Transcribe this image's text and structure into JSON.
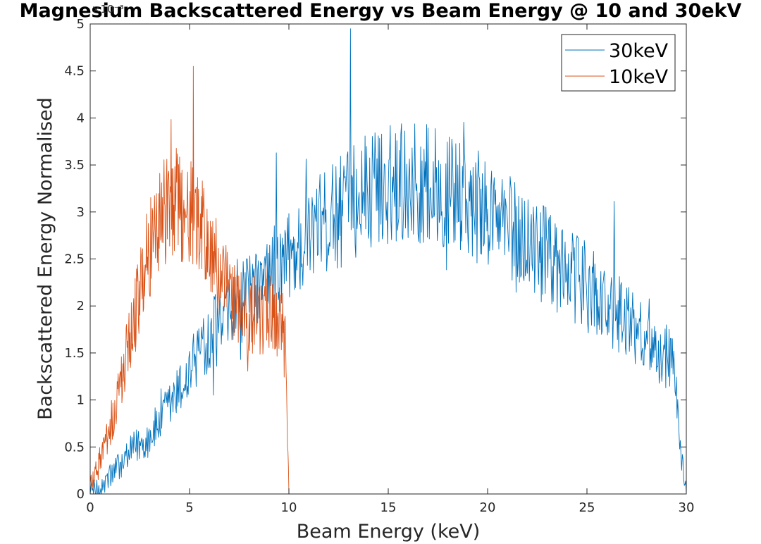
{
  "chart_data": {
    "type": "line",
    "title": "Magnesium Backscattered Energy vs Beam Energy @ 10 and 30ekV",
    "xlabel": "Beam Energy (keV)",
    "ylabel": "Backscattered Energy Normalised",
    "y_multiplier_label": "×10⁻³",
    "xlim": [
      0,
      30
    ],
    "ylim": [
      0,
      5
    ],
    "xticks": [
      0,
      5,
      10,
      15,
      20,
      25,
      30
    ],
    "xtick_labels": [
      "0",
      "5",
      "10",
      "15",
      "20",
      "25",
      "30"
    ],
    "yticks": [
      0,
      0.5,
      1,
      1.5,
      2,
      2.5,
      3,
      3.5,
      4,
      4.5,
      5
    ],
    "ytick_labels": [
      "0",
      "0.5",
      "1",
      "1.5",
      "2",
      "2.5",
      "3",
      "3.5",
      "4",
      "4.5",
      "5"
    ],
    "grid": false,
    "legend_position": "top-right",
    "series": [
      {
        "name": "30keV",
        "color": "#0072BD",
        "x_step": 0.3,
        "x_start": 0,
        "values": [
          0.05,
          0.02,
          0.08,
          0.15,
          0.25,
          0.3,
          0.38,
          0.45,
          0.52,
          0.55,
          0.62,
          0.7,
          0.8,
          0.9,
          1.0,
          1.1,
          1.2,
          1.35,
          1.5,
          1.6,
          1.7,
          1.75,
          1.8,
          1.85,
          1.9,
          2.0,
          2.05,
          2.1,
          2.15,
          2.2,
          2.3,
          2.35,
          2.4,
          2.5,
          2.55,
          2.6,
          2.7,
          2.75,
          2.8,
          2.85,
          2.9,
          2.95,
          3.0,
          3.05,
          3.1,
          3.15,
          3.2,
          3.2,
          3.25,
          3.25,
          3.3,
          3.3,
          3.35,
          3.3,
          3.35,
          3.3,
          3.3,
          3.3,
          3.25,
          3.25,
          3.2,
          3.2,
          3.15,
          3.1,
          3.1,
          3.05,
          3.0,
          3.0,
          2.95,
          2.9,
          2.85,
          2.8,
          2.75,
          2.7,
          2.65,
          2.6,
          2.55,
          2.5,
          2.45,
          2.4,
          2.35,
          2.3,
          2.25,
          2.2,
          2.15,
          2.1,
          2.05,
          2.0,
          1.95,
          1.9,
          1.85,
          1.8,
          1.75,
          1.7,
          1.6,
          1.55,
          1.5,
          1.45,
          1.3,
          0.5,
          0.05
        ]
      },
      {
        "name": "10keV",
        "color": "#D95319",
        "x_step": 0.1,
        "x_start": 0,
        "values": [
          0.1,
          0.15,
          0.2,
          0.25,
          0.3,
          0.35,
          0.42,
          0.5,
          0.55,
          0.6,
          0.7,
          0.78,
          0.85,
          0.95,
          1.05,
          1.15,
          1.25,
          1.35,
          1.45,
          1.55,
          1.65,
          1.75,
          1.85,
          1.95,
          2.05,
          2.15,
          2.25,
          2.35,
          2.45,
          2.55,
          2.6,
          2.7,
          2.8,
          2.85,
          2.9,
          2.95,
          3.0,
          3.0,
          3.05,
          3.1,
          3.1,
          3.1,
          3.1,
          3.1,
          3.05,
          3.05,
          3.05,
          3.0,
          3.0,
          3.0,
          3.0,
          2.95,
          2.95,
          2.9,
          2.9,
          2.85,
          2.8,
          2.75,
          2.7,
          2.65,
          2.6,
          2.55,
          2.5,
          2.45,
          2.4,
          2.35,
          2.3,
          2.25,
          2.2,
          2.15,
          2.1,
          2.05,
          2.0,
          2.0,
          1.95,
          1.95,
          1.95,
          1.9,
          1.9,
          1.9,
          1.9,
          1.9,
          1.9,
          1.9,
          1.9,
          1.9,
          1.9,
          1.9,
          1.95,
          1.95,
          1.95,
          1.95,
          1.9,
          1.9,
          1.85,
          1.85,
          1.8,
          1.75,
          1.7,
          1.0,
          0.0
        ]
      }
    ]
  }
}
